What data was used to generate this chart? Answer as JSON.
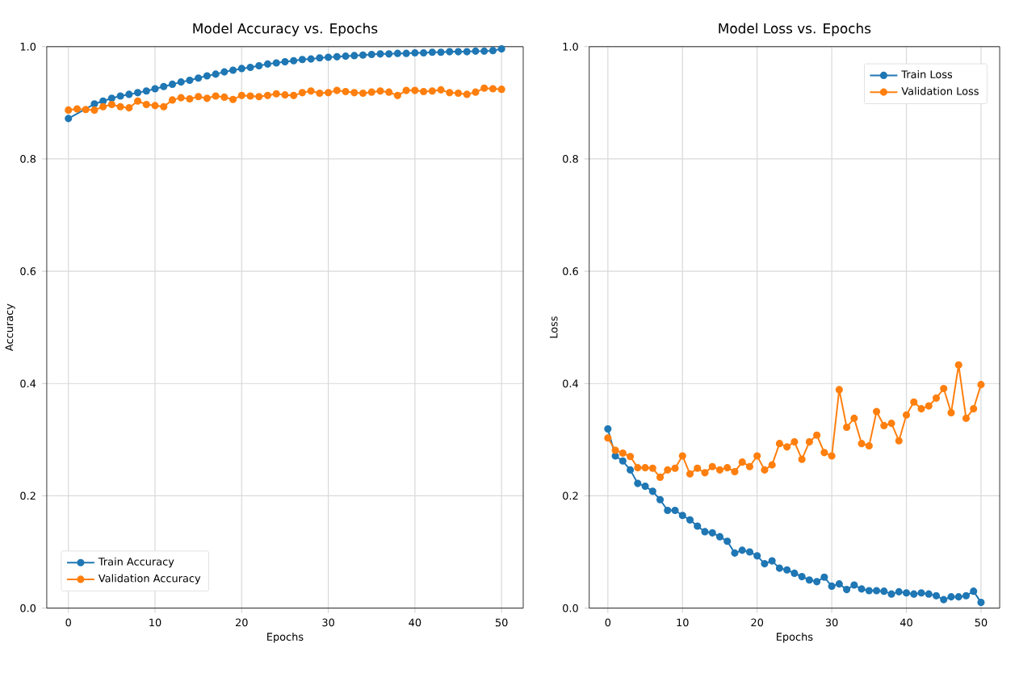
{
  "chart_data": [
    {
      "type": "line",
      "title": "Model Accuracy vs. Epochs",
      "xlabel": "Epochs",
      "ylabel": "Accuracy",
      "x": [
        0,
        1,
        2,
        3,
        4,
        5,
        6,
        7,
        8,
        9,
        10,
        11,
        12,
        13,
        14,
        15,
        16,
        17,
        18,
        19,
        20,
        21,
        22,
        23,
        24,
        25,
        26,
        27,
        28,
        29,
        30,
        31,
        32,
        33,
        34,
        35,
        36,
        37,
        38,
        39,
        40,
        41,
        42,
        43,
        44,
        45,
        46,
        47,
        48,
        49,
        50
      ],
      "series": [
        {
          "name": "Train Accuracy",
          "color": "#1f77b4",
          "values": [
            0.872,
            null,
            null,
            0.898,
            0.903,
            0.908,
            0.912,
            0.915,
            0.918,
            0.921,
            0.925,
            0.929,
            0.933,
            0.937,
            0.94,
            0.944,
            0.948,
            0.951,
            0.955,
            0.958,
            0.961,
            0.963,
            0.966,
            0.969,
            0.971,
            0.973,
            0.975,
            0.977,
            0.978,
            0.98,
            0.981,
            0.982,
            0.983,
            0.984,
            0.985,
            0.986,
            0.987,
            0.987,
            0.988,
            0.988,
            0.989,
            0.989,
            0.99,
            0.99,
            0.991,
            0.991,
            0.991,
            0.992,
            0.992,
            0.993,
            0.996
          ]
        },
        {
          "name": "Validation Accuracy",
          "color": "#ff7f0e",
          "values": [
            0.887,
            0.889,
            0.888,
            0.887,
            0.893,
            0.897,
            0.893,
            0.891,
            0.903,
            0.897,
            0.895,
            0.893,
            0.905,
            0.909,
            0.907,
            0.911,
            0.908,
            0.912,
            0.91,
            0.906,
            0.913,
            0.912,
            0.911,
            0.913,
            0.916,
            0.914,
            0.913,
            0.918,
            0.921,
            0.917,
            0.918,
            0.922,
            0.92,
            0.918,
            0.917,
            0.919,
            0.921,
            0.919,
            0.913,
            0.922,
            0.922,
            0.92,
            0.921,
            0.923,
            0.918,
            0.917,
            0.915,
            0.919,
            0.926,
            0.925,
            0.924
          ]
        }
      ],
      "xlim": [
        -2.5,
        52.5
      ],
      "xticks": [
        0,
        10,
        20,
        30,
        40,
        50
      ],
      "ylim": [
        0,
        1
      ],
      "yticks": [
        {
          "value": 0,
          "label": "0.0"
        },
        {
          "value": 0.2,
          "label": "0.2"
        },
        {
          "value": 0.4,
          "label": "0.4"
        },
        {
          "value": 0.6,
          "label": "0.6"
        },
        {
          "value": 0.8,
          "label": "0.8"
        },
        {
          "value": 1,
          "label": "1.0"
        }
      ],
      "grid": true,
      "legend": "bottom left",
      "marker": "circle"
    },
    {
      "type": "line",
      "title": "Model Loss vs. Epochs",
      "xlabel": "Epochs",
      "ylabel": "Loss",
      "x": [
        0,
        1,
        2,
        3,
        4,
        5,
        6,
        7,
        8,
        9,
        10,
        11,
        12,
        13,
        14,
        15,
        16,
        17,
        18,
        19,
        20,
        21,
        22,
        23,
        24,
        25,
        26,
        27,
        28,
        29,
        30,
        31,
        32,
        33,
        34,
        35,
        36,
        37,
        38,
        39,
        40,
        41,
        42,
        43,
        44,
        45,
        46,
        47,
        48,
        49,
        50
      ],
      "series": [
        {
          "name": "Train Loss",
          "color": "#1f77b4",
          "values": [
            0.319,
            0.271,
            0.262,
            0.246,
            0.222,
            0.217,
            0.208,
            0.193,
            0.174,
            0.174,
            0.165,
            0.157,
            0.146,
            0.136,
            0.134,
            0.127,
            0.119,
            0.098,
            0.103,
            0.1,
            0.093,
            0.079,
            0.084,
            0.071,
            0.068,
            0.062,
            0.056,
            0.05,
            0.047,
            0.055,
            0.039,
            0.043,
            0.033,
            0.041,
            0.034,
            0.031,
            0.031,
            0.03,
            0.025,
            0.029,
            0.027,
            0.025,
            0.027,
            0.025,
            0.022,
            0.015,
            0.02,
            0.02,
            0.022,
            0.03,
            0.01
          ]
        },
        {
          "name": "Validation Loss",
          "color": "#ff7f0e",
          "values": [
            0.303,
            0.281,
            0.276,
            0.27,
            0.25,
            0.25,
            0.249,
            0.233,
            0.246,
            0.249,
            0.271,
            0.239,
            0.249,
            0.241,
            0.252,
            0.246,
            0.25,
            0.243,
            0.26,
            0.252,
            0.271,
            0.246,
            0.255,
            0.293,
            0.287,
            0.296,
            0.265,
            0.296,
            0.308,
            0.277,
            0.271,
            0.389,
            0.322,
            0.338,
            0.293,
            0.289,
            0.35,
            0.325,
            0.329,
            0.298,
            0.344,
            0.367,
            0.355,
            0.36,
            0.374,
            0.391,
            0.348,
            0.433,
            0.338,
            0.355,
            0.398
          ]
        }
      ],
      "xlim": [
        -2.5,
        52.5
      ],
      "xticks": [
        0,
        10,
        20,
        30,
        40,
        50
      ],
      "ylim": [
        0,
        1
      ],
      "yticks": [
        {
          "value": 0,
          "label": "0.0"
        },
        {
          "value": 0.2,
          "label": "0.2"
        },
        {
          "value": 0.4,
          "label": "0.4"
        },
        {
          "value": 0.6,
          "label": "0.6"
        },
        {
          "value": 0.8,
          "label": "0.8"
        },
        {
          "value": 1,
          "label": "1.0"
        }
      ],
      "grid": true,
      "legend": "top right",
      "marker": "circle"
    }
  ]
}
